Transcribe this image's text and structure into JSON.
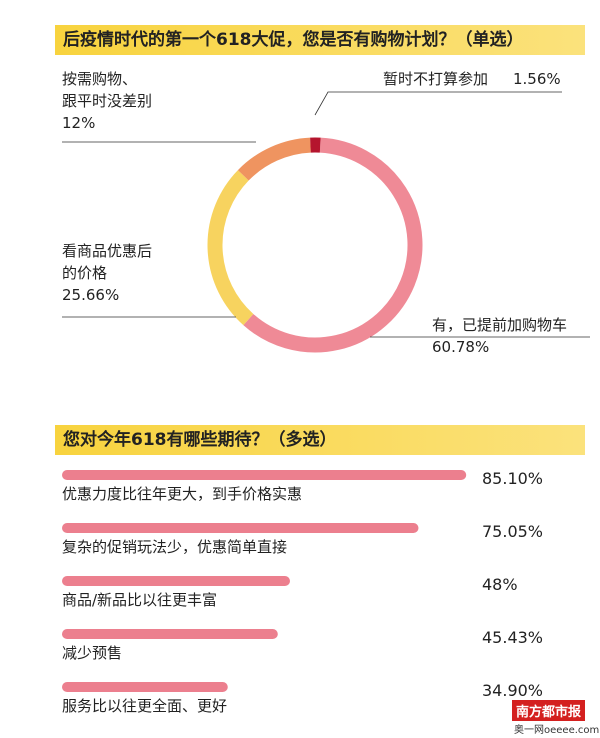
{
  "chart_data": [
    {
      "type": "pie",
      "title": "后疫情时代的第一个618大促，您是否有购物计划？（单选）",
      "categories": [
        "有，已提前加购物车",
        "看商品优惠后\n的价格",
        "按需购物、\n跟平时没差别",
        "暂时不打算参加"
      ],
      "values": [
        60.78,
        25.66,
        12,
        1.56
      ],
      "value_labels": [
        "60.78%",
        "25.66%",
        "12%",
        "1.56%"
      ],
      "colors": [
        "#ef8a96",
        "#f7d35f",
        "#ef9460",
        "#b5152e"
      ]
    },
    {
      "type": "hbar",
      "title": "您对今年618有哪些期待？（多选）",
      "categories": [
        "优惠力度比往年更大，到手价格实惠",
        "复杂的促销玩法少，优惠简单直接",
        "商品/新品比以往更丰富",
        "减少预售",
        "服务比以往更全面、更好"
      ],
      "values": [
        85.1,
        75.05,
        48,
        45.43,
        34.9
      ],
      "value_labels": [
        "85.10%",
        "75.05%",
        "48%",
        "45.43%",
        "34.90%"
      ],
      "color": "#ec7f8e"
    }
  ],
  "credits": {
    "brand": "南方都市报",
    "site": "奥一网oeeee.com"
  }
}
